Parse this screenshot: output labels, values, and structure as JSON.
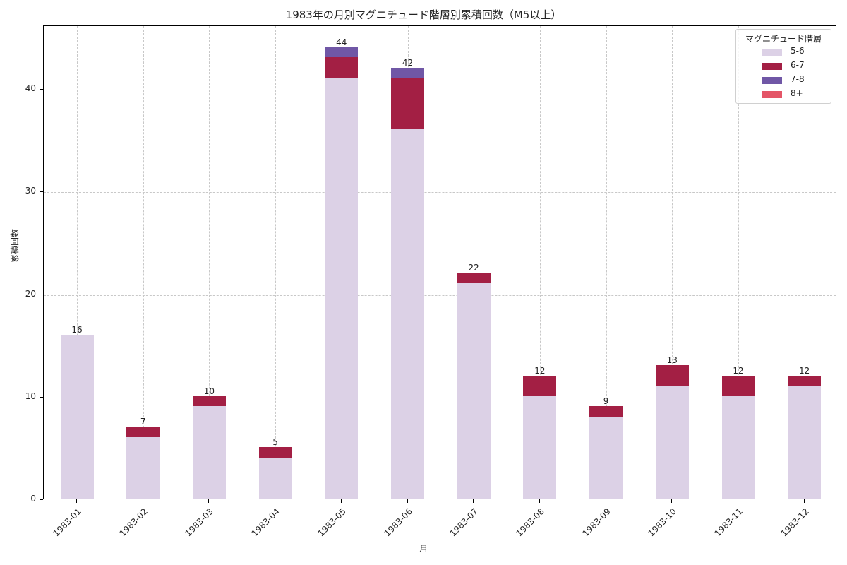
{
  "title": "1983年の月別マグニチュード階層別累積回数（M5以上）",
  "xlabel": "月",
  "ylabel": "累積回数",
  "legend": {
    "title": "マグニチュード階層",
    "items": [
      {
        "label": "5-6",
        "color": "#dcd1e6"
      },
      {
        "label": "6-7",
        "color": "#a31f44"
      },
      {
        "label": "7-8",
        "color": "#7057a6"
      },
      {
        "label": "8+",
        "color": "#e45567"
      }
    ]
  },
  "y_ticks": [
    "0",
    "10",
    "20",
    "30",
    "40"
  ],
  "x_ticks": [
    "1983-01",
    "1983-02",
    "1983-03",
    "1983-04",
    "1983-05",
    "1983-06",
    "1983-07",
    "1983-08",
    "1983-09",
    "1983-10",
    "1983-11",
    "1983-12"
  ],
  "totals": [
    "16",
    "7",
    "10",
    "5",
    "44",
    "42",
    "22",
    "12",
    "9",
    "13",
    "12",
    "12"
  ],
  "chart_data": {
    "type": "bar",
    "stacked": true,
    "title": "1983年の月別マグニチュード階層別累積回数（M5以上）",
    "xlabel": "月",
    "ylabel": "累積回数",
    "categories": [
      "1983-01",
      "1983-02",
      "1983-03",
      "1983-04",
      "1983-05",
      "1983-06",
      "1983-07",
      "1983-08",
      "1983-09",
      "1983-10",
      "1983-11",
      "1983-12"
    ],
    "series": [
      {
        "name": "5-6",
        "color": "#dcd1e6",
        "values": [
          16,
          6,
          9,
          4,
          41,
          36,
          21,
          10,
          8,
          11,
          10,
          11
        ]
      },
      {
        "name": "6-7",
        "color": "#a31f44",
        "values": [
          0,
          1,
          1,
          1,
          2,
          5,
          1,
          2,
          1,
          2,
          2,
          1
        ]
      },
      {
        "name": "7-8",
        "color": "#7057a6",
        "values": [
          0,
          0,
          0,
          0,
          1,
          1,
          0,
          0,
          0,
          0,
          0,
          0
        ]
      },
      {
        "name": "8+",
        "color": "#e45567",
        "values": [
          0,
          0,
          0,
          0,
          0,
          0,
          0,
          0,
          0,
          0,
          0,
          0
        ]
      }
    ],
    "totals": [
      16,
      7,
      10,
      5,
      44,
      42,
      22,
      12,
      9,
      13,
      12,
      12
    ],
    "ylim": [
      0,
      46.2
    ],
    "yticks": [
      0,
      10,
      20,
      30,
      40
    ],
    "grid": true,
    "legend_title": "マグニチュード階層",
    "legend_position": "upper right"
  }
}
